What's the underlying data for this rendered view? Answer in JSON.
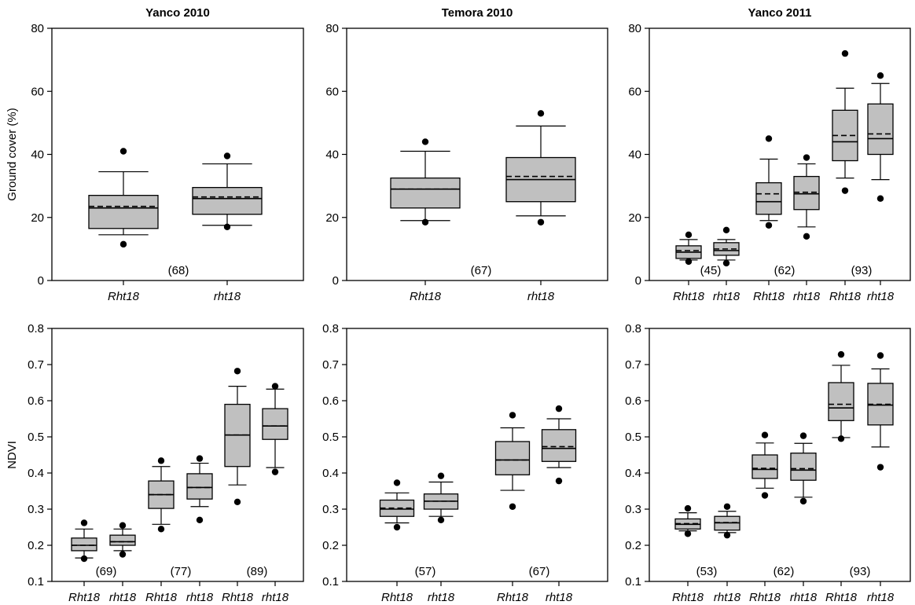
{
  "figure": {
    "colors": {
      "box_fill": "#c0c0c0",
      "stroke": "#000000",
      "background": "#ffffff"
    }
  },
  "chart_data": [
    {
      "type": "box",
      "title": "Yanco 2010",
      "ylabel": "Ground cover (%)",
      "ylim": [
        0,
        80
      ],
      "yticks": [
        "0",
        "20",
        "40",
        "60",
        "80"
      ],
      "categories": [
        "Rht18",
        "rht18"
      ],
      "groups": [
        {
          "n": "(68)"
        }
      ],
      "boxes": [
        {
          "category": "Rht18",
          "min": 11.5,
          "whisker_low": 14.5,
          "q1": 16.5,
          "median": 23,
          "mean": 23.5,
          "q3": 27,
          "whisker_high": 34.5,
          "max": 41
        },
        {
          "category": "rht18",
          "min": 17,
          "whisker_low": 17.5,
          "q1": 21,
          "median": 26,
          "mean": 26.5,
          "q3": 29.5,
          "whisker_high": 37,
          "max": 39.5
        }
      ]
    },
    {
      "type": "box",
      "title": "Temora 2010",
      "ylabel": "",
      "ylim": [
        0,
        80
      ],
      "yticks": [
        "0",
        "20",
        "40",
        "60",
        "80"
      ],
      "categories": [
        "Rht18",
        "rht18"
      ],
      "groups": [
        {
          "n": "(67)"
        }
      ],
      "boxes": [
        {
          "category": "Rht18",
          "min": 18.5,
          "whisker_low": 19,
          "q1": 23,
          "median": 29,
          "mean": 29,
          "q3": 32.5,
          "whisker_high": 41,
          "max": 44
        },
        {
          "category": "rht18",
          "min": 18.5,
          "whisker_low": 20.5,
          "q1": 25,
          "median": 32,
          "mean": 33,
          "q3": 39,
          "whisker_high": 49,
          "max": 53
        }
      ]
    },
    {
      "type": "box",
      "title": "Yanco 2011",
      "ylabel": "",
      "ylim": [
        0,
        80
      ],
      "yticks": [
        "0",
        "20",
        "40",
        "60",
        "80"
      ],
      "categories": [
        "Rht18",
        "rht18",
        "Rht18",
        "rht18",
        "Rht18",
        "rht18"
      ],
      "groups": [
        {
          "n": "(45)"
        },
        {
          "n": "(62)"
        },
        {
          "n": "(93)"
        }
      ],
      "boxes": [
        {
          "category": "Rht18",
          "min": 6,
          "whisker_low": 6.5,
          "q1": 7,
          "median": 9,
          "mean": 9.5,
          "q3": 11,
          "whisker_high": 13,
          "max": 14.5
        },
        {
          "category": "rht18",
          "min": 5.5,
          "whisker_low": 6.5,
          "q1": 8,
          "median": 9.5,
          "mean": 10,
          "q3": 12,
          "whisker_high": 13,
          "max": 16
        },
        {
          "category": "Rht18",
          "min": 17.5,
          "whisker_low": 19,
          "q1": 21,
          "median": 25,
          "mean": 27.5,
          "q3": 31,
          "whisker_high": 38.5,
          "max": 45
        },
        {
          "category": "rht18",
          "min": 14,
          "whisker_low": 17,
          "q1": 22.5,
          "median": 27.5,
          "mean": 28,
          "q3": 33,
          "whisker_high": 37,
          "max": 39
        },
        {
          "category": "Rht18",
          "min": 28.5,
          "whisker_low": 32.5,
          "q1": 38,
          "median": 44,
          "mean": 46,
          "q3": 54,
          "whisker_high": 61,
          "max": 72
        },
        {
          "category": "rht18",
          "min": 26,
          "whisker_low": 32,
          "q1": 40,
          "median": 45,
          "mean": 46.5,
          "q3": 56,
          "whisker_high": 62.5,
          "max": 65
        }
      ]
    },
    {
      "type": "box",
      "title": "",
      "ylabel": "NDVI",
      "ylim": [
        0.1,
        0.8
      ],
      "yticks": [
        "0.1",
        "0.2",
        "0.3",
        "0.4",
        "0.5",
        "0.6",
        "0.7",
        "0.8"
      ],
      "categories": [
        "Rht18",
        "rht18",
        "Rht18",
        "rht18",
        "Rht18",
        "rht18"
      ],
      "groups": [
        {
          "n": "(69)"
        },
        {
          "n": "(77)"
        },
        {
          "n": "(89)"
        }
      ],
      "boxes": [
        {
          "category": "Rht18",
          "min": 0.163,
          "whisker_low": 0.165,
          "q1": 0.185,
          "median": 0.2,
          "mean": 0.2,
          "q3": 0.22,
          "whisker_high": 0.245,
          "max": 0.262
        },
        {
          "category": "rht18",
          "min": 0.175,
          "whisker_low": 0.185,
          "q1": 0.2,
          "median": 0.21,
          "mean": 0.21,
          "q3": 0.228,
          "whisker_high": 0.245,
          "max": 0.255
        },
        {
          "category": "Rht18",
          "min": 0.245,
          "whisker_low": 0.258,
          "q1": 0.302,
          "median": 0.34,
          "mean": 0.34,
          "q3": 0.378,
          "whisker_high": 0.418,
          "max": 0.434
        },
        {
          "category": "rht18",
          "min": 0.27,
          "whisker_low": 0.307,
          "q1": 0.328,
          "median": 0.36,
          "mean": 0.36,
          "q3": 0.398,
          "whisker_high": 0.427,
          "max": 0.44
        },
        {
          "category": "Rht18",
          "min": 0.32,
          "whisker_low": 0.367,
          "q1": 0.418,
          "median": 0.505,
          "mean": 0.505,
          "q3": 0.59,
          "whisker_high": 0.64,
          "max": 0.682
        },
        {
          "category": "rht18",
          "min": 0.403,
          "whisker_low": 0.415,
          "q1": 0.493,
          "median": 0.53,
          "mean": 0.53,
          "q3": 0.578,
          "whisker_high": 0.632,
          "max": 0.64
        }
      ]
    },
    {
      "type": "box",
      "title": "",
      "ylabel": "",
      "ylim": [
        0.1,
        0.8
      ],
      "yticks": [
        "0.1",
        "0.2",
        "0.3",
        "0.4",
        "0.5",
        "0.6",
        "0.7",
        "0.8"
      ],
      "categories": [
        "Rht18",
        "rht18",
        "Rht18",
        "rht18"
      ],
      "groups": [
        {
          "n": "(57)"
        },
        {
          "n": "(67)"
        }
      ],
      "boxes": [
        {
          "category": "Rht18",
          "min": 0.25,
          "whisker_low": 0.262,
          "q1": 0.28,
          "median": 0.3,
          "mean": 0.303,
          "q3": 0.325,
          "whisker_high": 0.345,
          "max": 0.373
        },
        {
          "category": "rht18",
          "min": 0.27,
          "whisker_low": 0.28,
          "q1": 0.3,
          "median": 0.322,
          "mean": 0.322,
          "q3": 0.342,
          "whisker_high": 0.375,
          "max": 0.392
        },
        {
          "category": "Rht18",
          "min": 0.307,
          "whisker_low": 0.352,
          "q1": 0.395,
          "median": 0.436,
          "mean": 0.436,
          "q3": 0.487,
          "whisker_high": 0.525,
          "max": 0.56
        },
        {
          "category": "rht18",
          "min": 0.378,
          "whisker_low": 0.415,
          "q1": 0.432,
          "median": 0.468,
          "mean": 0.473,
          "q3": 0.52,
          "whisker_high": 0.55,
          "max": 0.578
        }
      ]
    },
    {
      "type": "box",
      "title": "",
      "ylabel": "",
      "ylim": [
        0.1,
        0.8
      ],
      "yticks": [
        "0.1",
        "0.2",
        "0.3",
        "0.4",
        "0.5",
        "0.6",
        "0.7",
        "0.8"
      ],
      "categories": [
        "Rht18",
        "rht18",
        "Rht18",
        "rht18",
        "Rht18",
        "rht18"
      ],
      "groups": [
        {
          "n": "(53)"
        },
        {
          "n": "(62)"
        },
        {
          "n": "(93)"
        }
      ],
      "boxes": [
        {
          "category": "Rht18",
          "min": 0.232,
          "whisker_low": 0.24,
          "q1": 0.245,
          "median": 0.258,
          "mean": 0.26,
          "q3": 0.273,
          "whisker_high": 0.29,
          "max": 0.302
        },
        {
          "category": "rht18",
          "min": 0.228,
          "whisker_low": 0.235,
          "q1": 0.242,
          "median": 0.262,
          "mean": 0.263,
          "q3": 0.28,
          "whisker_high": 0.294,
          "max": 0.307
        },
        {
          "category": "Rht18",
          "min": 0.338,
          "whisker_low": 0.358,
          "q1": 0.385,
          "median": 0.41,
          "mean": 0.413,
          "q3": 0.45,
          "whisker_high": 0.483,
          "max": 0.505
        },
        {
          "category": "rht18",
          "min": 0.322,
          "whisker_low": 0.333,
          "q1": 0.38,
          "median": 0.408,
          "mean": 0.412,
          "q3": 0.455,
          "whisker_high": 0.482,
          "max": 0.503
        },
        {
          "category": "Rht18",
          "min": 0.495,
          "whisker_low": 0.498,
          "q1": 0.545,
          "median": 0.58,
          "mean": 0.59,
          "q3": 0.65,
          "whisker_high": 0.698,
          "max": 0.728
        },
        {
          "category": "rht18",
          "min": 0.416,
          "whisker_low": 0.472,
          "q1": 0.533,
          "median": 0.588,
          "mean": 0.59,
          "q3": 0.648,
          "whisker_high": 0.688,
          "max": 0.725
        }
      ]
    }
  ]
}
